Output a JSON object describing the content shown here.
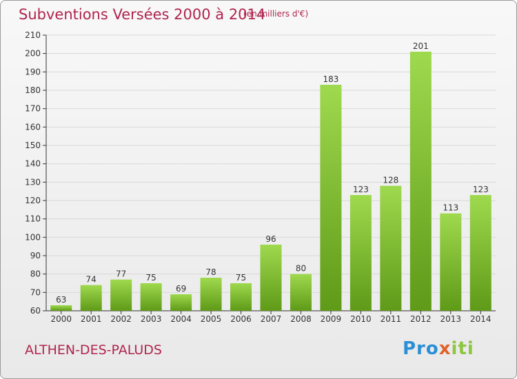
{
  "title": "Subventions Versées 2000 à 2014",
  "unit_note": "(en milliers d'€)",
  "commune": "ALTHEN-DES-PALUDS",
  "logo": {
    "parts": [
      "Pro",
      "x",
      "iti"
    ],
    "colors": [
      "#2a8fd6",
      "#e0622a",
      "#8dc63f"
    ]
  },
  "colors": {
    "bar_light": "#9fd94e",
    "bar_dark": "#5f9a18",
    "title": "#b0244e",
    "axis": "#333333",
    "grid": "#d8d8d8"
  },
  "chart_data": {
    "type": "bar",
    "title": "Subventions Versées 2000 à 2014",
    "categories": [
      "2000",
      "2001",
      "2002",
      "2003",
      "2004",
      "2005",
      "2006",
      "2007",
      "2008",
      "2009",
      "2010",
      "2011",
      "2012",
      "2013",
      "2014"
    ],
    "values": [
      63,
      74,
      77,
      75,
      69,
      78,
      75,
      96,
      80,
      183,
      123,
      128,
      201,
      113,
      123
    ],
    "ylim": [
      60,
      210
    ],
    "ytick_step": 10,
    "xlabel": "",
    "ylabel": "",
    "grid": true,
    "data_labels": true
  }
}
